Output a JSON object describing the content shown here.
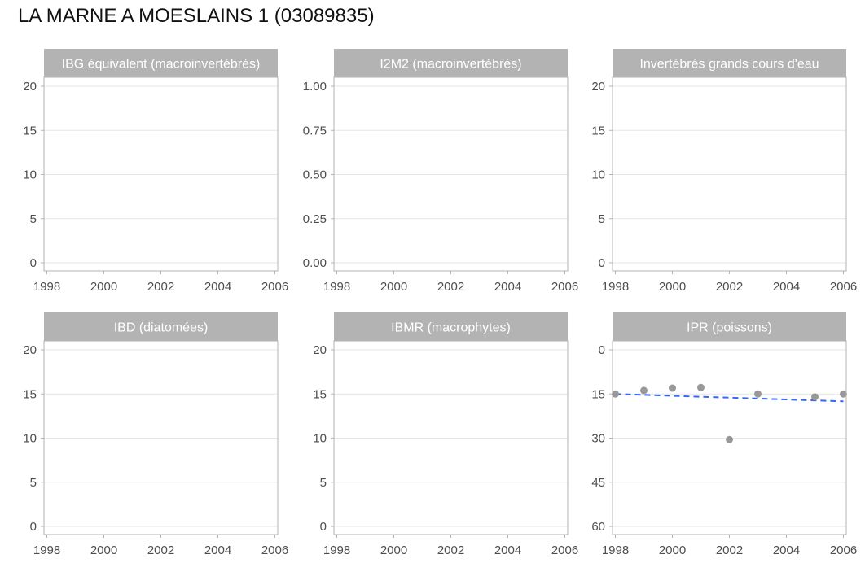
{
  "page_title": "LA MARNE A MOESLAINS 1 (03089835)",
  "colors": {
    "strip": "#b3b3b3",
    "grid": "#e6e6e6",
    "frame": "#b3b3b3",
    "point": "#999999",
    "trend": "#3366ff"
  },
  "chart_data": [
    {
      "type": "scatter",
      "title": "IBG équivalent (macroinvertébrés)",
      "xticks": [
        "1998",
        "2000",
        "2002",
        "2004",
        "2006"
      ],
      "xlim": [
        1997.9,
        2006.1
      ],
      "yticks": [
        "0",
        "5",
        "10",
        "15",
        "20"
      ],
      "ylim": [
        0,
        20
      ],
      "y_reversed": false,
      "points": [],
      "grid": true
    },
    {
      "type": "scatter",
      "title": "I2M2 (macroinvertébrés)",
      "xticks": [
        "1998",
        "2000",
        "2002",
        "2004",
        "2006"
      ],
      "xlim": [
        1997.9,
        2006.1
      ],
      "yticks": [
        "0.00",
        "0.25",
        "0.50",
        "0.75",
        "1.00"
      ],
      "ylim": [
        0,
        1
      ],
      "y_reversed": false,
      "points": [],
      "grid": true
    },
    {
      "type": "scatter",
      "title": "Invertébrés grands cours d'eau",
      "xticks": [
        "1998",
        "2000",
        "2002",
        "2004",
        "2006"
      ],
      "xlim": [
        1997.9,
        2006.1
      ],
      "yticks": [
        "0",
        "5",
        "10",
        "15",
        "20"
      ],
      "ylim": [
        0,
        20
      ],
      "y_reversed": false,
      "points": [],
      "grid": true
    },
    {
      "type": "scatter",
      "title": "IBD (diatomées)",
      "xticks": [
        "1998",
        "2000",
        "2002",
        "2004",
        "2006"
      ],
      "xlim": [
        1997.9,
        2006.1
      ],
      "yticks": [
        "0",
        "5",
        "10",
        "15",
        "20"
      ],
      "ylim": [
        0,
        20
      ],
      "y_reversed": false,
      "points": [],
      "grid": true
    },
    {
      "type": "scatter",
      "title": "IBMR (macrophytes)",
      "xticks": [
        "1998",
        "2000",
        "2002",
        "2004",
        "2006"
      ],
      "xlim": [
        1997.9,
        2006.1
      ],
      "yticks": [
        "0",
        "5",
        "10",
        "15",
        "20"
      ],
      "ylim": [
        0,
        20
      ],
      "y_reversed": false,
      "points": [],
      "grid": true
    },
    {
      "type": "scatter",
      "title": "IPR (poissons)",
      "xticks": [
        "1998",
        "2000",
        "2002",
        "2004",
        "2006"
      ],
      "xlim": [
        1997.9,
        2006.1
      ],
      "yticks": [
        "0",
        "15",
        "30",
        "45",
        "60"
      ],
      "ylim": [
        0,
        60
      ],
      "y_reversed": true,
      "points": [
        {
          "x": 1998,
          "y": 15
        },
        {
          "x": 1999,
          "y": 13.8
        },
        {
          "x": 2000,
          "y": 13
        },
        {
          "x": 2001,
          "y": 12.8
        },
        {
          "x": 2002,
          "y": 30.5
        },
        {
          "x": 2003,
          "y": 15
        },
        {
          "x": 2005,
          "y": 16
        },
        {
          "x": 2006,
          "y": 15
        }
      ],
      "trend": {
        "style": "dashed",
        "x": [
          1998,
          2006
        ],
        "y": [
          15,
          17.5
        ]
      },
      "grid": true
    }
  ]
}
